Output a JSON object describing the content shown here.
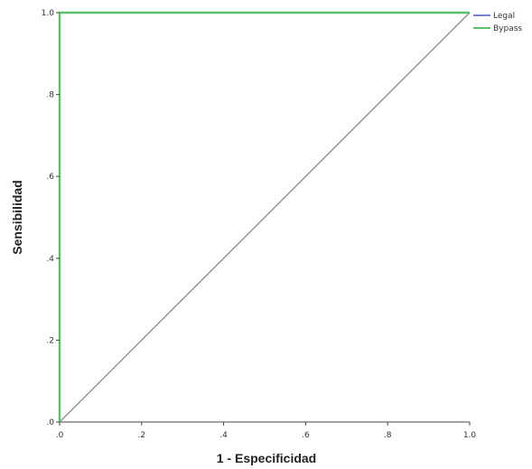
{
  "chart_data": {
    "type": "line",
    "title": "",
    "xlabel": "1 - Especificidad",
    "ylabel": "Sensibilidad",
    "xlim": [
      0,
      1
    ],
    "ylim": [
      0,
      1
    ],
    "xticks": [
      0,
      0.2,
      0.4,
      0.6,
      0.8,
      1.0
    ],
    "xtick_labels": [
      ".0",
      ".2",
      ".4",
      ".6",
      ".8",
      "1.0"
    ],
    "yticks": [
      0,
      0.2,
      0.4,
      0.6,
      0.8,
      1.0
    ],
    "ytick_labels": [
      ".0",
      ".2",
      ".4",
      ".6",
      ".8",
      "1.0"
    ],
    "grid": false,
    "legend_position": "top-right",
    "series": [
      {
        "name": "Legal",
        "color": "#7b7fd0",
        "x": [
          0,
          0,
          1
        ],
        "y": [
          0,
          1,
          1
        ]
      },
      {
        "name": "Bypass",
        "color": "#5cc16a",
        "x": [
          0,
          0,
          1
        ],
        "y": [
          0,
          1,
          1
        ]
      }
    ],
    "reference_line": {
      "color": "#8a8a8a",
      "x": [
        0,
        1
      ],
      "y": [
        0,
        1
      ]
    }
  }
}
